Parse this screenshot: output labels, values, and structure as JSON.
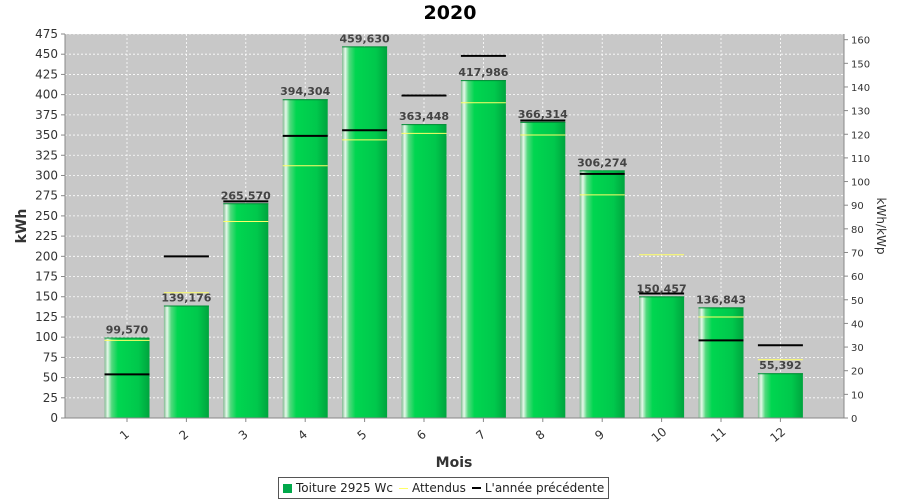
{
  "chart_data": {
    "type": "bar",
    "title": "2020",
    "xlabel": "Mois",
    "ylabel": "kWh",
    "y2label": "kWh/kWp",
    "categories": [
      "1",
      "2",
      "3",
      "4",
      "5",
      "6",
      "7",
      "8",
      "9",
      "10",
      "11",
      "12"
    ],
    "ylim": [
      0,
      475
    ],
    "y2lim": [
      0,
      162.4
    ],
    "yticks": [
      0,
      25,
      50,
      75,
      100,
      125,
      150,
      175,
      200,
      225,
      250,
      275,
      300,
      325,
      350,
      375,
      400,
      425,
      450,
      475
    ],
    "y2ticks": [
      0,
      10,
      20,
      30,
      40,
      50,
      60,
      70,
      80,
      90,
      100,
      110,
      120,
      130,
      140,
      150,
      160
    ],
    "grid": true,
    "legend_position": "bottom",
    "series": [
      {
        "name": "Toiture 2925 Wc",
        "kind": "bar",
        "color": "#00c850",
        "values": [
          99.57,
          139.176,
          265.57,
          394.304,
          459.63,
          363.448,
          417.986,
          366.314,
          306.274,
          150.457,
          136.843,
          55.392
        ],
        "labels": [
          "99,570",
          "139,176",
          "265,570",
          "394,304",
          "459,630",
          "363,448",
          "417,986",
          "366,314",
          "306,274",
          "150,457",
          "136,843",
          "55,392"
        ]
      },
      {
        "name": "Attendus",
        "kind": "marker",
        "color": "#ffff66",
        "values": [
          96,
          155,
          243,
          312,
          344,
          352,
          390,
          350,
          276,
          202,
          125,
          72
        ]
      },
      {
        "name": "L'année précédente",
        "kind": "marker",
        "color": "#000000",
        "values": [
          54,
          200,
          268,
          349,
          356,
          399,
          448,
          368,
          302,
          154,
          96,
          90
        ]
      }
    ]
  }
}
